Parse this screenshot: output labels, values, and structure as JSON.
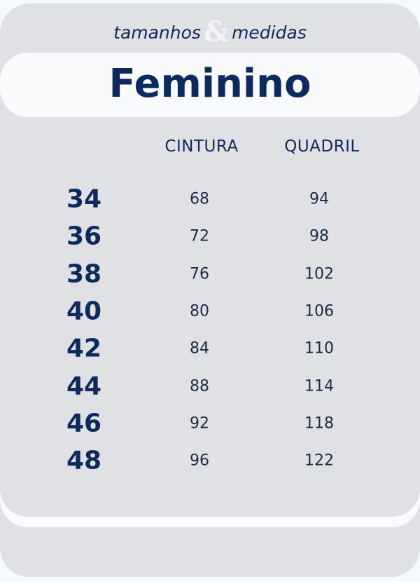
{
  "header": {
    "subtitle_left": "tamanhos",
    "ampersand": "&",
    "subtitle_right": "medidas",
    "title": "Feminino"
  },
  "table": {
    "columns": [
      "",
      "CINTURA",
      "QUADRIL"
    ],
    "rows": [
      {
        "size": "34",
        "cintura": "68",
        "quadril": "94"
      },
      {
        "size": "36",
        "cintura": "72",
        "quadril": "98"
      },
      {
        "size": "38",
        "cintura": "76",
        "quadril": "102"
      },
      {
        "size": "40",
        "cintura": "80",
        "quadril": "106"
      },
      {
        "size": "42",
        "cintura": "84",
        "quadril": "110"
      },
      {
        "size": "44",
        "cintura": "88",
        "quadril": "114"
      },
      {
        "size": "46",
        "cintura": "92",
        "quadril": "118"
      },
      {
        "size": "48",
        "cintura": "96",
        "quadril": "122"
      }
    ]
  },
  "colors": {
    "navy": "#0d2a5c",
    "card_gray": "#dfe1e4",
    "band_white": "#f8fafc"
  }
}
